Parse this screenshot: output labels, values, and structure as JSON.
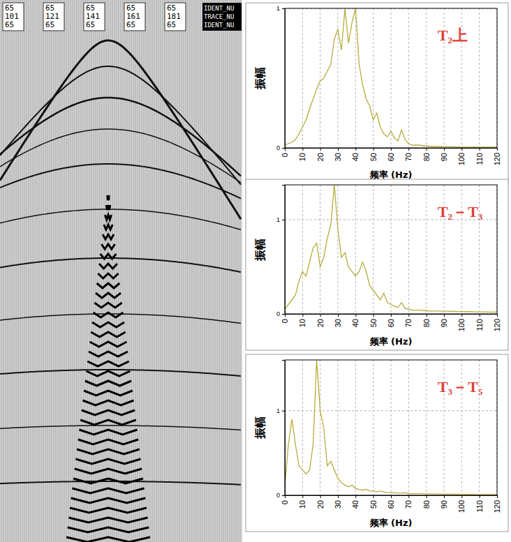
{
  "header": {
    "columns": [
      [
        "65",
        "101",
        "65"
      ],
      [
        "65",
        "121",
        "65"
      ],
      [
        "65",
        "141",
        "65"
      ],
      [
        "65",
        "161",
        "65"
      ],
      [
        "65",
        "181",
        "65"
      ]
    ],
    "field_labels": [
      "IDENT_NU",
      "TRACE_NU",
      "IDENT_NU"
    ]
  },
  "chart_data": [
    {
      "type": "line",
      "title": "T₂上",
      "x_label": "频率 (Hz)",
      "y_label": "振幅",
      "color": "#b5ad3c",
      "grid": true,
      "xlim": [
        0,
        120
      ],
      "xticks": [
        0,
        10,
        20,
        30,
        40,
        50,
        60,
        70,
        80,
        90,
        100,
        110,
        120
      ],
      "ylim": [
        0,
        1
      ],
      "yticks": [
        0,
        1
      ],
      "x": [
        0,
        2,
        4,
        6,
        8,
        10,
        12,
        14,
        16,
        18,
        20,
        22,
        24,
        26,
        28,
        30,
        32,
        34,
        36,
        38,
        40,
        42,
        44,
        46,
        48,
        50,
        52,
        54,
        56,
        58,
        60,
        62,
        64,
        66,
        68,
        70,
        72,
        74,
        76,
        78,
        80,
        82,
        84,
        86,
        88,
        90,
        92,
        94,
        96,
        98,
        100,
        102,
        104,
        106,
        108,
        110,
        112,
        114,
        116,
        118,
        120
      ],
      "values": [
        0.02,
        0.03,
        0.04,
        0.06,
        0.1,
        0.15,
        0.2,
        0.28,
        0.35,
        0.42,
        0.48,
        0.5,
        0.55,
        0.6,
        0.78,
        0.85,
        0.7,
        1.0,
        0.75,
        0.9,
        1.0,
        0.6,
        0.45,
        0.35,
        0.3,
        0.2,
        0.25,
        0.15,
        0.1,
        0.08,
        0.12,
        0.07,
        0.05,
        0.13,
        0.06,
        0.03,
        0.02,
        0.02,
        0.02,
        0.015,
        0.015,
        0.01,
        0.01,
        0.01,
        0.01,
        0.008,
        0.008,
        0.008,
        0.007,
        0.007,
        0.006,
        0.006,
        0.006,
        0.005,
        0.005,
        0.005,
        0.005,
        0.005,
        0.005,
        0.005,
        0.005
      ]
    },
    {
      "type": "line",
      "title": "T₂－T₃",
      "x_label": "频率 (Hz)",
      "y_label": "振幅",
      "color": "#b5ad3c",
      "grid": true,
      "xlim": [
        0,
        120
      ],
      "xticks": [
        0,
        10,
        20,
        30,
        40,
        50,
        60,
        70,
        80,
        90,
        100,
        110,
        120
      ],
      "ylim": [
        0,
        1.37
      ],
      "yticks": [
        0,
        1
      ],
      "x": [
        0,
        2,
        4,
        6,
        8,
        10,
        12,
        14,
        16,
        18,
        20,
        22,
        24,
        26,
        28,
        30,
        32,
        34,
        36,
        38,
        40,
        42,
        44,
        46,
        48,
        50,
        52,
        54,
        56,
        58,
        60,
        62,
        64,
        66,
        68,
        70,
        72,
        74,
        76,
        78,
        80,
        82,
        84,
        86,
        88,
        90,
        92,
        94,
        96,
        98,
        100,
        102,
        104,
        106,
        108,
        110,
        112,
        114,
        116,
        118,
        120
      ],
      "values": [
        0.05,
        0.1,
        0.15,
        0.2,
        0.35,
        0.45,
        0.4,
        0.55,
        0.7,
        0.75,
        0.5,
        0.6,
        0.8,
        0.95,
        1.37,
        0.9,
        0.6,
        0.65,
        0.5,
        0.45,
        0.4,
        0.45,
        0.55,
        0.45,
        0.3,
        0.25,
        0.2,
        0.15,
        0.22,
        0.12,
        0.1,
        0.08,
        0.07,
        0.12,
        0.06,
        0.05,
        0.04,
        0.04,
        0.04,
        0.035,
        0.035,
        0.03,
        0.03,
        0.03,
        0.03,
        0.028,
        0.028,
        0.026,
        0.026,
        0.025,
        0.025,
        0.024,
        0.024,
        0.023,
        0.022,
        0.022,
        0.021,
        0.021,
        0.02,
        0.02,
        0.02
      ]
    },
    {
      "type": "line",
      "title": "T₃－T₅",
      "x_label": "频率 (Hz)",
      "y_label": "振幅",
      "color": "#b5ad3c",
      "grid": true,
      "xlim": [
        0,
        120
      ],
      "xticks": [
        0,
        10,
        20,
        30,
        40,
        50,
        60,
        70,
        80,
        90,
        100,
        110,
        120
      ],
      "ylim": [
        0,
        1.6
      ],
      "yticks": [
        0,
        1
      ],
      "x": [
        0,
        2,
        4,
        6,
        8,
        10,
        12,
        14,
        16,
        18,
        20,
        22,
        24,
        26,
        28,
        30,
        32,
        34,
        36,
        38,
        40,
        42,
        44,
        46,
        48,
        50,
        52,
        54,
        56,
        58,
        60,
        62,
        64,
        66,
        68,
        70,
        72,
        74,
        76,
        78,
        80,
        82,
        84,
        86,
        88,
        90,
        92,
        94,
        96,
        98,
        100,
        102,
        104,
        106,
        108,
        110,
        112,
        114,
        116,
        118,
        120
      ],
      "values": [
        0.1,
        0.6,
        0.9,
        0.6,
        0.35,
        0.3,
        0.25,
        0.3,
        0.6,
        1.6,
        1.0,
        0.8,
        0.35,
        0.4,
        0.3,
        0.2,
        0.15,
        0.12,
        0.1,
        0.12,
        0.08,
        0.07,
        0.06,
        0.07,
        0.05,
        0.05,
        0.04,
        0.05,
        0.04,
        0.03,
        0.03,
        0.03,
        0.025,
        0.025,
        0.03,
        0.02,
        0.02,
        0.02,
        0.02,
        0.018,
        0.018,
        0.016,
        0.016,
        0.015,
        0.015,
        0.014,
        0.014,
        0.013,
        0.013,
        0.012,
        0.012,
        0.012,
        0.011,
        0.011,
        0.01,
        0.01,
        0.01,
        0.01,
        0.01,
        0.01,
        0.01
      ]
    }
  ]
}
